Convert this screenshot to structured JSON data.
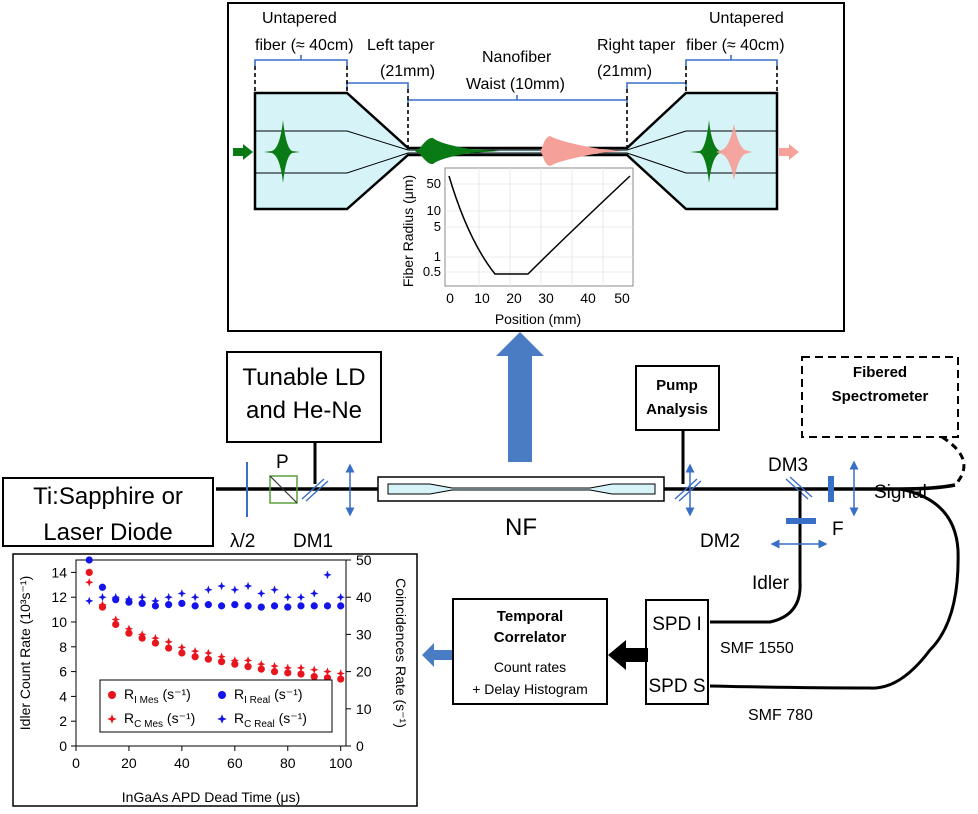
{
  "top_panel": {
    "untapered_left": [
      "Untapered",
      "fiber (≈ 40cm)"
    ],
    "untapered_right": [
      "Untapered",
      "fiber (≈ 40cm)"
    ],
    "left_taper": [
      "Left taper",
      "(21mm)"
    ],
    "right_taper": [
      "Right taper",
      "(21mm)"
    ],
    "nanofiber": [
      "Nanofiber",
      "Waist (10mm)"
    ],
    "colors": {
      "pump": "#0a7a14",
      "signal": "#f6a09a",
      "glass": "#d6f4f8",
      "bracket": "#3a6fc7"
    }
  },
  "inset_chart": {
    "ylabel": "Fiber Radius (μm)",
    "xlabel": "Position (mm)",
    "xticks": [
      "0",
      "10",
      "20",
      "30",
      "40",
      "50"
    ],
    "yticks": [
      "50",
      "10",
      "5",
      "1",
      "0.5"
    ]
  },
  "setup": {
    "source": [
      "Ti:Sapphire or",
      "Laser Diode"
    ],
    "tunable": [
      "Tunable LD",
      "and He-Ne"
    ],
    "half_wave": "λ/2",
    "polarizer": "P",
    "dm1": "DM1",
    "nf": "NF",
    "dm2": "DM2",
    "dm3": "DM3",
    "filter": "F",
    "pump_analysis": [
      "Pump",
      "Analysis"
    ],
    "spectrometer": [
      "Fibered",
      "Spectrometer"
    ],
    "signal": "Signal",
    "idler": "Idler",
    "smf1550": "SMF 1550",
    "smf780": "SMF 780",
    "spd_i": "SPD I",
    "spd_s": "SPD S",
    "correlator_title": [
      "Temporal",
      "Correlator"
    ],
    "correlator_text": [
      "Count rates",
      "+ Delay Histogram"
    ]
  },
  "chart_data": {
    "type": "scatter",
    "xlabel": "InGaAs APD Dead Time (μs)",
    "ylabel": "Idler Count Rate (10³s⁻¹)",
    "y2label": "Coincidences Rate (s⁻¹)",
    "xlim": [
      0,
      102
    ],
    "ylim": [
      0,
      15
    ],
    "y2lim": [
      0,
      50
    ],
    "xticks": [
      0,
      20,
      40,
      60,
      80,
      100
    ],
    "yticks": [
      0,
      2,
      4,
      6,
      8,
      10,
      12,
      14
    ],
    "y2ticks": [
      0,
      10,
      20,
      30,
      40,
      50
    ],
    "grid": false,
    "legend_position": "bottom-left",
    "legend": [
      {
        "main": "R",
        "sub": "I Mes",
        "unit": "(s⁻¹)",
        "color": "#e8141e",
        "marker": "circle"
      },
      {
        "main": "R",
        "sub": "I Real",
        "unit": "(s⁻¹)",
        "color": "#1414e8",
        "marker": "circle"
      },
      {
        "main": "R",
        "sub": "C Mes",
        "unit": "(s⁻¹)",
        "color": "#e8141e",
        "marker": "star"
      },
      {
        "main": "R",
        "sub": "C Real",
        "unit": "(s⁻¹)",
        "color": "#1414e8",
        "marker": "star"
      }
    ],
    "series": [
      {
        "name": "R I Mes (s⁻¹)",
        "axis": "left",
        "marker": "circle",
        "color": "#e8141e",
        "x": [
          5,
          10,
          15,
          20,
          25,
          30,
          35,
          40,
          45,
          50,
          55,
          60,
          65,
          70,
          75,
          80,
          85,
          90,
          95,
          100
        ],
        "y": [
          14.0,
          11.2,
          9.8,
          9.1,
          8.7,
          8.3,
          7.9,
          7.5,
          7.2,
          7.0,
          6.8,
          6.6,
          6.4,
          6.2,
          6.0,
          5.9,
          5.8,
          5.6,
          5.5,
          5.4
        ]
      },
      {
        "name": "R I Real (s⁻¹)",
        "axis": "left",
        "marker": "circle",
        "color": "#1414e8",
        "x": [
          5,
          10,
          15,
          20,
          25,
          30,
          35,
          40,
          45,
          50,
          55,
          60,
          65,
          70,
          75,
          80,
          85,
          90,
          95,
          100
        ],
        "y": [
          15.0,
          12.8,
          11.8,
          11.6,
          11.5,
          11.3,
          11.4,
          11.5,
          11.3,
          11.4,
          11.3,
          11.4,
          11.3,
          11.2,
          11.3,
          11.2,
          11.3,
          11.3,
          11.3,
          11.3
        ]
      },
      {
        "name": "R C Mes (s⁻¹)",
        "axis": "right",
        "marker": "star",
        "color": "#e8141e",
        "x": [
          5,
          10,
          15,
          20,
          25,
          30,
          35,
          40,
          45,
          50,
          55,
          60,
          65,
          70,
          75,
          80,
          85,
          90,
          95,
          100
        ],
        "y": [
          44,
          38,
          34,
          31.5,
          30,
          29,
          28,
          26.5,
          25.5,
          25,
          24,
          23,
          23,
          22,
          21.5,
          21,
          21,
          20.5,
          20,
          19.5
        ]
      },
      {
        "name": "R C Real (s⁻¹)",
        "axis": "right",
        "marker": "star",
        "color": "#1414e8",
        "x": [
          5,
          10,
          15,
          20,
          25,
          30,
          35,
          40,
          45,
          50,
          55,
          60,
          65,
          70,
          75,
          80,
          85,
          90,
          95,
          100
        ],
        "y": [
          39,
          40,
          40,
          39.5,
          40,
          39,
          40,
          41,
          40,
          42,
          43,
          42,
          43,
          41,
          42,
          40,
          40,
          41,
          46,
          40
        ]
      }
    ]
  }
}
